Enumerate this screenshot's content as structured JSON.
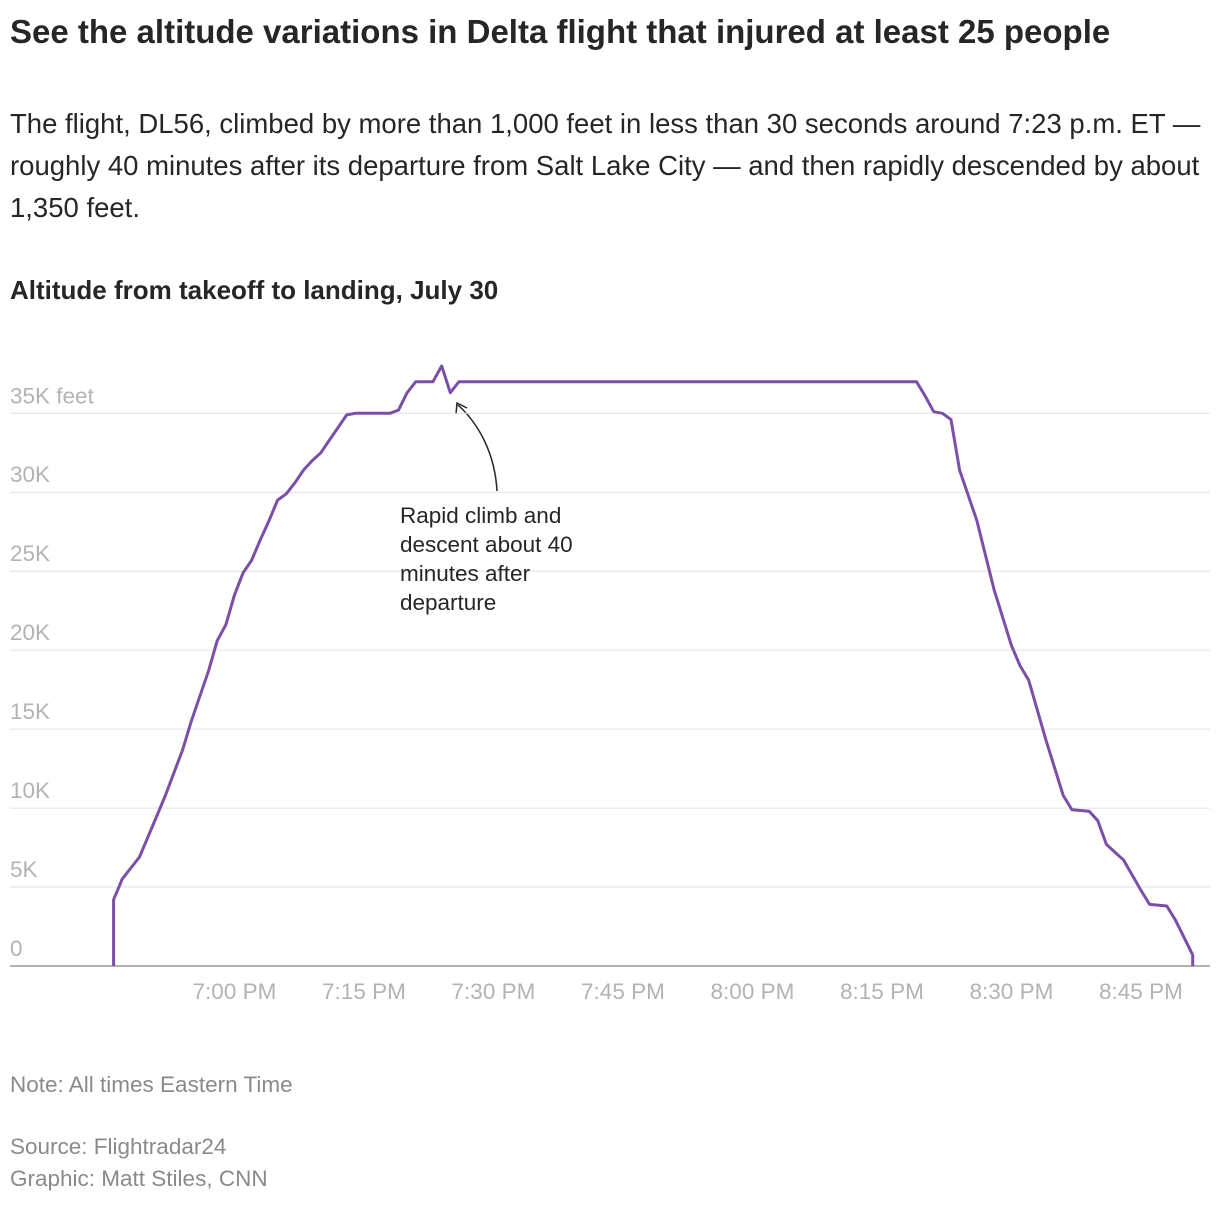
{
  "chart_data": {
    "type": "line",
    "title": "See the altitude variations in Delta flight that injured at least 25 people",
    "subtitle": "The flight, DL56, climbed by more than 1,000 feet in less than 30 seconds around 7:23 p.m. ET — roughly 40 minutes after its departure from Salt Lake City — and then rapidly descended by about 1,350 feet.",
    "chart_title": "Altitude from takeoff to landing, July 30",
    "annotation": "Rapid climb and descent about 40 minutes after departure",
    "note": "Note: All times Eastern Time",
    "source": "Source: Flightradar24",
    "credit": "Graphic: Matt Stiles, CNN",
    "color": "#7b4fa8",
    "grid": true,
    "x": [
      "18:46",
      "18:46",
      "18:47",
      "18:49",
      "18:51",
      "18:52",
      "18:54",
      "18:55",
      "18:57",
      "18:58",
      "18:59",
      "19:00",
      "19:01",
      "19:02",
      "19:03",
      "19:04",
      "19:05",
      "19:06",
      "19:07",
      "19:08",
      "19:09",
      "19:10",
      "19:11",
      "19:12",
      "19:13",
      "19:14",
      "19:18",
      "19:19",
      "19:20",
      "19:21",
      "19:23",
      "19:24",
      "19:25",
      "19:26",
      "20:19",
      "20:20",
      "20:21",
      "20:22",
      "20:23",
      "20:24",
      "20:26",
      "20:28",
      "20:30",
      "20:31",
      "20:32",
      "20:34",
      "20:36",
      "20:37",
      "20:39",
      "20:40",
      "20:41",
      "20:43",
      "20:45",
      "20:46",
      "20:48",
      "20:49",
      "20:51",
      "20:51"
    ],
    "values": [
      0,
      4200,
      5500,
      6900,
      9500,
      10800,
      13700,
      15500,
      18700,
      20600,
      21600,
      23500,
      24900,
      25700,
      27000,
      28200,
      29500,
      29900,
      30600,
      31400,
      32000,
      32500,
      33300,
      34100,
      34900,
      35000,
      35000,
      35200,
      36300,
      37000,
      37000,
      38000,
      36300,
      37000,
      37000,
      36100,
      35100,
      35000,
      34600,
      31400,
      28200,
      23800,
      20300,
      19000,
      18100,
      14300,
      10800,
      9900,
      9800,
      9200,
      7700,
      6700,
      4800,
      3900,
      3800,
      2900,
      700,
      0
    ],
    "xlim": [
      "18:34",
      "20:53"
    ],
    "xticks": [
      {
        "value": "19:00",
        "label": "7:00 PM"
      },
      {
        "value": "19:15",
        "label": "7:15 PM"
      },
      {
        "value": "19:30",
        "label": "7:30 PM"
      },
      {
        "value": "19:45",
        "label": "7:45 PM"
      },
      {
        "value": "20:00",
        "label": "8:00 PM"
      },
      {
        "value": "20:15",
        "label": "8:15 PM"
      },
      {
        "value": "20:30",
        "label": "8:30 PM"
      },
      {
        "value": "20:45",
        "label": "8:45 PM"
      }
    ],
    "ylim": [
      0,
      38500
    ],
    "yticks": [
      0,
      {
        "value": 5000,
        "label": "5K"
      },
      {
        "value": 10000,
        "label": "10K"
      },
      {
        "value": 15000,
        "label": "15K"
      },
      {
        "value": 20000,
        "label": "20K"
      },
      {
        "value": 25000,
        "label": "25K"
      },
      {
        "value": 30000,
        "label": "30K"
      },
      {
        "value": 35000,
        "label": "35K feet"
      }
    ]
  }
}
